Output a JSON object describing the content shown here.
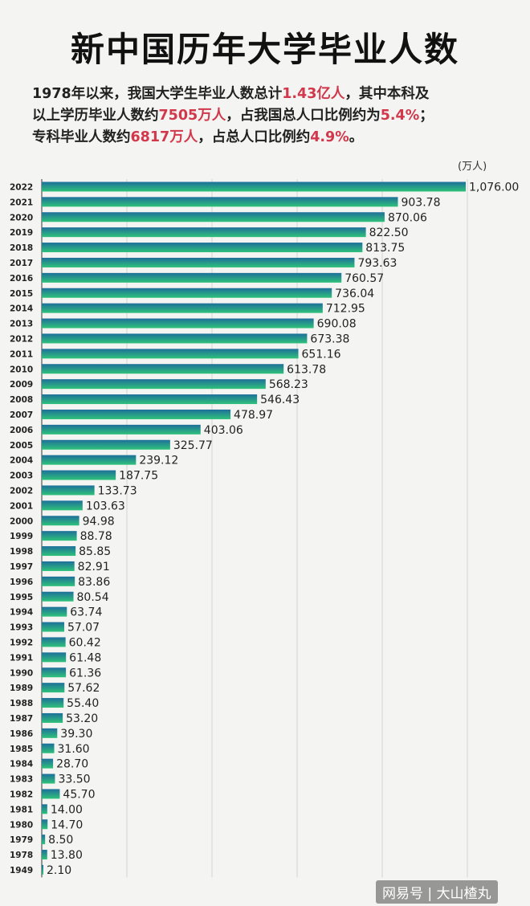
{
  "title": "新中国历年大学毕业人数",
  "subtitle": {
    "line1_a": "1978年以来，我国大学生毕业人数总计",
    "line1_hl": "1.43亿人",
    "line1_b": "，其中本科及",
    "line2_a": "以上学历毕业人数约",
    "line2_hl1": "7505万人",
    "line2_b": "，占我国总人口比例约为",
    "line2_hl2": "5.4%",
    "line2_c": "；",
    "line3_a": "专科毕业人数约",
    "line3_hl1": "6817万人",
    "line3_b": "，占总人口比例约",
    "line3_hl2": "4.9%",
    "line3_c": "。"
  },
  "footer": "网易号 | 大山楂丸",
  "colors": {
    "bar_top": "#1e6f9a",
    "bar_bottom": "#2fc27a",
    "highlight": "#d2384b"
  },
  "chart_data": {
    "type": "bar",
    "orientation": "horizontal",
    "unit": "(万人)",
    "categories": [
      "2022",
      "2021",
      "2020",
      "2019",
      "2018",
      "2017",
      "2016",
      "2015",
      "2014",
      "2013",
      "2012",
      "2011",
      "2010",
      "2009",
      "2008",
      "2007",
      "2006",
      "2005",
      "2004",
      "2003",
      "2002",
      "2001",
      "2000",
      "1999",
      "1998",
      "1997",
      "1996",
      "1995",
      "1994",
      "1993",
      "1992",
      "1991",
      "1990",
      "1989",
      "1988",
      "1987",
      "1986",
      "1985",
      "1984",
      "1983",
      "1982",
      "1981",
      "1980",
      "1979",
      "1978",
      "1949"
    ],
    "values": [
      1076.0,
      903.78,
      870.06,
      822.5,
      813.75,
      793.63,
      760.57,
      736.04,
      712.95,
      690.08,
      673.38,
      651.16,
      613.78,
      568.23,
      546.43,
      478.97,
      403.06,
      325.77,
      239.12,
      187.75,
      133.73,
      103.63,
      94.98,
      88.78,
      85.85,
      82.91,
      83.86,
      80.54,
      63.74,
      57.07,
      60.42,
      61.48,
      61.36,
      57.62,
      55.4,
      53.2,
      39.3,
      31.6,
      28.7,
      33.5,
      45.7,
      14.0,
      14.7,
      8.5,
      13.8,
      2.1
    ],
    "labels": [
      "1,076.00",
      "903.78",
      "870.06",
      "822.50",
      "813.75",
      "793.63",
      "760.57",
      "736.04",
      "712.95",
      "690.08",
      "673.38",
      "651.16",
      "613.78",
      "568.23",
      "546.43",
      "478.97",
      "403.06",
      "325.77",
      "239.12",
      "187.75",
      "133.73",
      "103.63",
      "94.98",
      "88.78",
      "85.85",
      "82.91",
      "83.86",
      "80.54",
      "63.74",
      "57.07",
      "60.42",
      "61.48",
      "61.36",
      "57.62",
      "55.40",
      "53.20",
      "39.30",
      "31.60",
      "28.70",
      "33.50",
      "45.70",
      "14.00",
      "14.70",
      "8.50",
      "13.80",
      "2.10"
    ],
    "xlim": [
      0,
      1076
    ],
    "grid": true
  }
}
